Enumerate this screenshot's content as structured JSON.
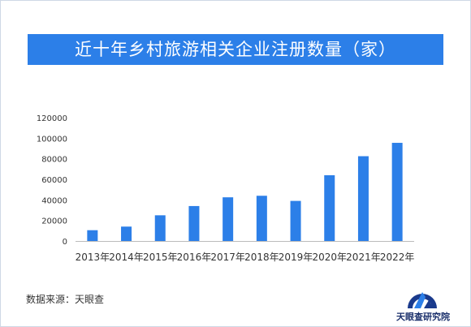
{
  "title": "近十年乡村旅游相关企业注册数量（家）",
  "source": "数据来源：天眼查",
  "logo_text": "天眼查研究院",
  "colors": {
    "banner": "#2c7fe8",
    "bar": "#2c7fe8",
    "axis": "#bbbbbb",
    "text": "#333333"
  },
  "chart_data": {
    "type": "bar",
    "title": "近十年乡村旅游相关企业注册数量（家）",
    "categories": [
      "2013年",
      "2014年",
      "2015年",
      "2016年",
      "2017年",
      "2018年",
      "2019年",
      "2020年",
      "2021年",
      "2022年"
    ],
    "values": [
      10500,
      14000,
      25000,
      34000,
      42500,
      44000,
      39000,
      64000,
      82500,
      95500
    ],
    "ylim": [
      0,
      120000
    ],
    "yticks": [
      0,
      20000,
      40000,
      60000,
      80000,
      100000,
      120000
    ],
    "grid": false,
    "legend": "none"
  }
}
